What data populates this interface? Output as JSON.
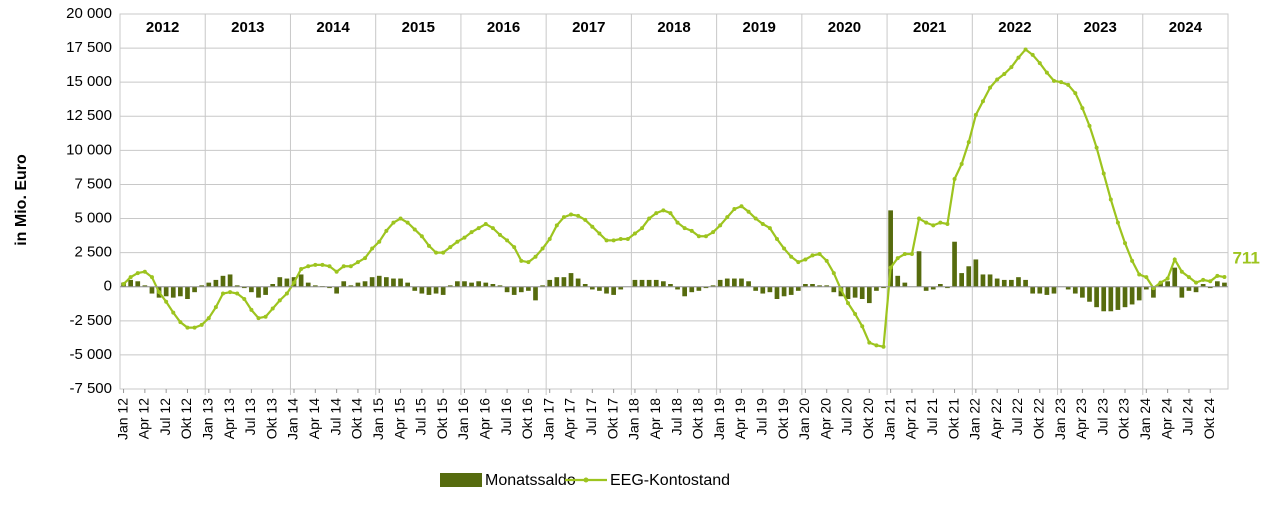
{
  "chart_data": {
    "type": "bar_line",
    "y_axis_label": "in Mio. Euro",
    "year_labels": [
      "2012",
      "2013",
      "2014",
      "2015",
      "2016",
      "2017",
      "2018",
      "2019",
      "2020",
      "2021",
      "2022",
      "2023",
      "2024"
    ],
    "categories": [
      "Jan 12",
      null,
      null,
      "Apr 12",
      null,
      null,
      "Jul 12",
      null,
      null,
      "Okt 12",
      null,
      null,
      "Jan 13",
      null,
      null,
      "Apr 13",
      null,
      null,
      "Jul 13",
      null,
      null,
      "Okt 13",
      null,
      null,
      "Jan 14",
      null,
      null,
      "Apr 14",
      null,
      null,
      "Jul 14",
      null,
      null,
      "Okt 14",
      null,
      null,
      "Jan 15",
      null,
      null,
      "Apr 15",
      null,
      null,
      "Jul 15",
      null,
      null,
      "Okt 15",
      null,
      null,
      "Jan 16",
      null,
      null,
      "Apr 16",
      null,
      null,
      "Jul 16",
      null,
      null,
      "Okt 16",
      null,
      null,
      "Jan 17",
      null,
      null,
      "Apr 17",
      null,
      null,
      "Jul 17",
      null,
      null,
      "Okt 17",
      null,
      null,
      "Jan 18",
      null,
      null,
      "Apr 18",
      null,
      null,
      "Jul 18",
      null,
      null,
      "Okt 18",
      null,
      null,
      "Jan 19",
      null,
      null,
      "Apr 19",
      null,
      null,
      "Jul 19",
      null,
      null,
      "Okt 19",
      null,
      null,
      "Jan 20",
      null,
      null,
      "Apr 20",
      null,
      null,
      "Jul 20",
      null,
      null,
      "Okt 20",
      null,
      null,
      "Jan 21",
      null,
      null,
      "Apr 21",
      null,
      null,
      "Jul 21",
      null,
      null,
      "Okt 21",
      null,
      null,
      "Jan 22",
      null,
      null,
      "Apr 22",
      null,
      null,
      "Jul 22",
      null,
      null,
      "Okt 22",
      null,
      null,
      "Jan 23",
      null,
      null,
      "Apr 23",
      null,
      null,
      "Jul 23",
      null,
      null,
      "Okt 23",
      null,
      null,
      "Jan 24",
      null,
      null,
      "Apr 24",
      null,
      null,
      "Jul 24",
      null,
      null,
      "Okt 24",
      null,
      null
    ],
    "series": [
      {
        "name": "Monatssaldo",
        "type": "bar",
        "color": "#566b0e",
        "values": [
          300,
          500,
          400,
          100,
          -500,
          -800,
          -700,
          -800,
          -700,
          -900,
          -400,
          100,
          300,
          500,
          800,
          900,
          100,
          -100,
          -400,
          -800,
          -600,
          200,
          700,
          600,
          700,
          900,
          300,
          100,
          50,
          -100,
          -500,
          400,
          100,
          300,
          400,
          700,
          800,
          700,
          600,
          600,
          300,
          -300,
          -500,
          -600,
          -500,
          -600,
          100,
          400,
          400,
          300,
          400,
          300,
          200,
          100,
          -400,
          -600,
          -400,
          -300,
          -1000,
          100,
          500,
          700,
          700,
          1000,
          600,
          200,
          -200,
          -300,
          -500,
          -600,
          -200,
          0,
          500,
          500,
          500,
          500,
          400,
          200,
          -200,
          -700,
          -400,
          -300,
          -100,
          100,
          500,
          600,
          600,
          600,
          400,
          -300,
          -500,
          -400,
          -900,
          -700,
          -600,
          -300,
          200,
          200,
          100,
          100,
          -400,
          -700,
          -900,
          -800,
          -900,
          -1200,
          -300,
          -100,
          5600,
          800,
          300,
          0,
          2600,
          -300,
          -200,
          200,
          -100,
          3300,
          1000,
          1500,
          2000,
          900,
          900,
          600,
          500,
          500,
          700,
          500,
          -500,
          -500,
          -600,
          -500,
          0,
          -200,
          -500,
          -800,
          -1100,
          -1500,
          -1800,
          -1800,
          -1700,
          -1500,
          -1300,
          -1000,
          -200,
          -800,
          300,
          400,
          1400,
          -800,
          -300,
          -400,
          200,
          -100,
          400,
          300
        ]
      },
      {
        "name": "EEG-Kontostand",
        "type": "line",
        "color": "#9dc41f",
        "values": [
          200,
          700,
          1000,
          1100,
          700,
          -400,
          -1100,
          -1900,
          -2600,
          -3000,
          -3000,
          -2800,
          -2300,
          -1500,
          -500,
          -400,
          -500,
          -900,
          -1700,
          -2300,
          -2200,
          -1600,
          -1000,
          -500,
          300,
          1300,
          1500,
          1600,
          1600,
          1500,
          1100,
          1500,
          1500,
          1800,
          2100,
          2800,
          3300,
          4100,
          4700,
          5000,
          4700,
          4200,
          3700,
          3000,
          2500,
          2500,
          2900,
          3300,
          3600,
          4000,
          4300,
          4600,
          4300,
          3800,
          3400,
          2900,
          1900,
          1800,
          2200,
          2800,
          3500,
          4500,
          5100,
          5300,
          5200,
          4900,
          4400,
          3900,
          3400,
          3400,
          3500,
          3500,
          3900,
          4300,
          5000,
          5400,
          5600,
          5400,
          4700,
          4300,
          4100,
          3700,
          3700,
          4000,
          4500,
          5100,
          5700,
          5900,
          5500,
          5000,
          4600,
          4300,
          3500,
          2800,
          2200,
          1800,
          2000,
          2300,
          2400,
          1900,
          1000,
          -200,
          -1200,
          -2000,
          -2900,
          -4100,
          -4300,
          -4400,
          1400,
          2100,
          2400,
          2400,
          5000,
          4700,
          4500,
          4700,
          4600,
          7900,
          9000,
          10600,
          12600,
          13600,
          14600,
          15200,
          15600,
          16100,
          16800,
          17400,
          17000,
          16400,
          15700,
          15100,
          15000,
          14800,
          14200,
          13100,
          11800,
          10200,
          8300,
          6400,
          4700,
          3200,
          1900,
          900,
          700,
          -100,
          300,
          600,
          2000,
          1100,
          700,
          300,
          500,
          400,
          800,
          711
        ]
      }
    ],
    "ylim": [
      -7500,
      20000
    ],
    "yticks": [
      {
        "value": -7500,
        "label": "-7 500"
      },
      {
        "value": -5000,
        "label": "-5 000"
      },
      {
        "value": -2500,
        "label": "-2 500"
      },
      0,
      {
        "value": 2500,
        "label": "2 500"
      },
      {
        "value": 5000,
        "label": "5 000"
      },
      {
        "value": 7500,
        "label": "7 500"
      },
      {
        "value": 10000,
        "label": "10 000"
      },
      {
        "value": 12500,
        "label": "12 500"
      },
      {
        "value": 15000,
        "label": "15 000"
      },
      {
        "value": 17500,
        "label": "17 500"
      },
      {
        "value": 20000,
        "label": "20 000"
      }
    ],
    "grid": true,
    "legend": "bottom"
  }
}
